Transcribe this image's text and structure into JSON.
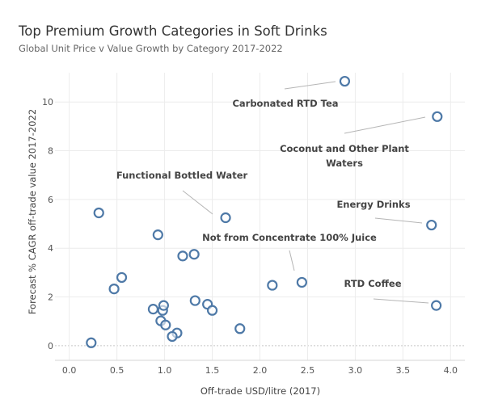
{
  "chart_data": {
    "type": "scatter",
    "title": "Top Premium Growth Categories in Soft Drinks",
    "subtitle": "Global Unit Price v Value Growth by Category 2017-2022",
    "xlabel": "Off-trade USD/litre (2017)",
    "ylabel": "Forecast % CAGR off-trade value 2017-2022",
    "xlim": [
      -0.15,
      4.15
    ],
    "ylim": [
      -0.6,
      11.2
    ],
    "x_ticks": [
      "0.0",
      "0.5",
      "1.0",
      "1.5",
      "2.0",
      "2.5",
      "3.0",
      "3.5",
      "4.0"
    ],
    "y_ticks": [
      "0",
      "2",
      "4",
      "6",
      "8",
      "10"
    ],
    "grid": true,
    "colors": {
      "marker": "#4e79a7",
      "leader": "#b5b5b5"
    },
    "points": [
      {
        "x": 2.89,
        "y": 10.85,
        "label": "Carbonated RTD Tea"
      },
      {
        "x": 3.86,
        "y": 9.4,
        "label": "Coconut and Other Plant Waters"
      },
      {
        "x": 1.64,
        "y": 5.25,
        "label": "Functional Bottled Water"
      },
      {
        "x": 3.8,
        "y": 4.95,
        "label": "Energy Drinks"
      },
      {
        "x": 2.44,
        "y": 2.6,
        "label": "Not from Concentrate 100% Juice"
      },
      {
        "x": 3.85,
        "y": 1.65,
        "label": "RTD Coffee"
      },
      {
        "x": 0.31,
        "y": 5.45
      },
      {
        "x": 0.93,
        "y": 4.55
      },
      {
        "x": 1.19,
        "y": 3.68
      },
      {
        "x": 1.31,
        "y": 3.75
      },
      {
        "x": 0.55,
        "y": 2.8
      },
      {
        "x": 0.47,
        "y": 2.33
      },
      {
        "x": 2.13,
        "y": 2.48
      },
      {
        "x": 0.88,
        "y": 1.5
      },
      {
        "x": 0.98,
        "y": 1.45
      },
      {
        "x": 0.99,
        "y": 1.65
      },
      {
        "x": 1.32,
        "y": 1.85
      },
      {
        "x": 1.45,
        "y": 1.7
      },
      {
        "x": 1.5,
        "y": 1.45
      },
      {
        "x": 0.96,
        "y": 1.02
      },
      {
        "x": 1.01,
        "y": 0.85
      },
      {
        "x": 1.13,
        "y": 0.52
      },
      {
        "x": 1.08,
        "y": 0.38
      },
      {
        "x": 1.79,
        "y": 0.7
      },
      {
        "x": 0.23,
        "y": 0.12
      }
    ],
    "annotations": [
      {
        "text": "Carbonated RTD Tea",
        "lines": [
          "Carbonated RTD Tea"
        ]
      },
      {
        "text": "Coconut and Other Plant Waters",
        "lines": [
          "Coconut and Other Plant",
          "Waters"
        ]
      },
      {
        "text": "Functional Bottled Water",
        "lines": [
          "Functional Bottled Water"
        ]
      },
      {
        "text": "Energy Drinks",
        "lines": [
          "Energy Drinks"
        ]
      },
      {
        "text": "Not from Concentrate 100% Juice",
        "lines": [
          "Not from Concentrate 100% Juice"
        ]
      },
      {
        "text": "RTD Coffee",
        "lines": [
          "RTD Coffee"
        ]
      }
    ]
  }
}
